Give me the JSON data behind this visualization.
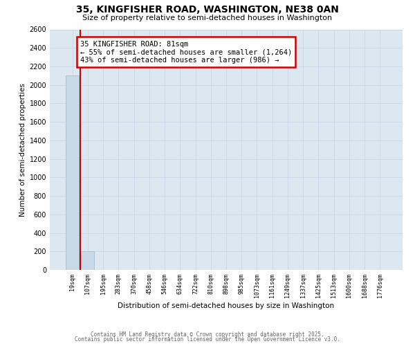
{
  "title": "35, KINGFISHER ROAD, WASHINGTON, NE38 0AN",
  "subtitle": "Size of property relative to semi-detached houses in Washington",
  "bar_labels": [
    "19sqm",
    "107sqm",
    "195sqm",
    "283sqm",
    "370sqm",
    "458sqm",
    "546sqm",
    "634sqm",
    "722sqm",
    "810sqm",
    "898sqm",
    "985sqm",
    "1073sqm",
    "1161sqm",
    "1249sqm",
    "1337sqm",
    "1425sqm",
    "1513sqm",
    "1600sqm",
    "1688sqm",
    "1776sqm"
  ],
  "bar_values": [
    2100,
    200,
    0,
    0,
    0,
    0,
    0,
    0,
    0,
    0,
    0,
    0,
    0,
    0,
    0,
    0,
    0,
    0,
    0,
    0,
    0
  ],
  "bar_color": "#c8d9e8",
  "bar_edge_color": "#a8bece",
  "ylim": [
    0,
    2600
  ],
  "yticks": [
    0,
    200,
    400,
    600,
    800,
    1000,
    1200,
    1400,
    1600,
    1800,
    2000,
    2200,
    2400,
    2600
  ],
  "ylabel": "Number of semi-detached properties",
  "xlabel": "Distribution of semi-detached houses by size in Washington",
  "annotation_title": "35 KINGFISHER ROAD: 81sqm",
  "annotation_line1": "← 55% of semi-detached houses are smaller (1,264)",
  "annotation_line2": "43% of semi-detached houses are larger (986) →",
  "vline_color": "#cc0000",
  "annotation_box_color": "#ffffff",
  "annotation_box_edge": "#cc0000",
  "grid_color": "#c8d8e8",
  "plot_bg_color": "#dce8f0",
  "fig_bg_color": "#ffffff",
  "footer_line1": "Contains HM Land Registry data © Crown copyright and database right 2025.",
  "footer_line2": "Contains public sector information licensed under the Open Government Licence v3.0."
}
